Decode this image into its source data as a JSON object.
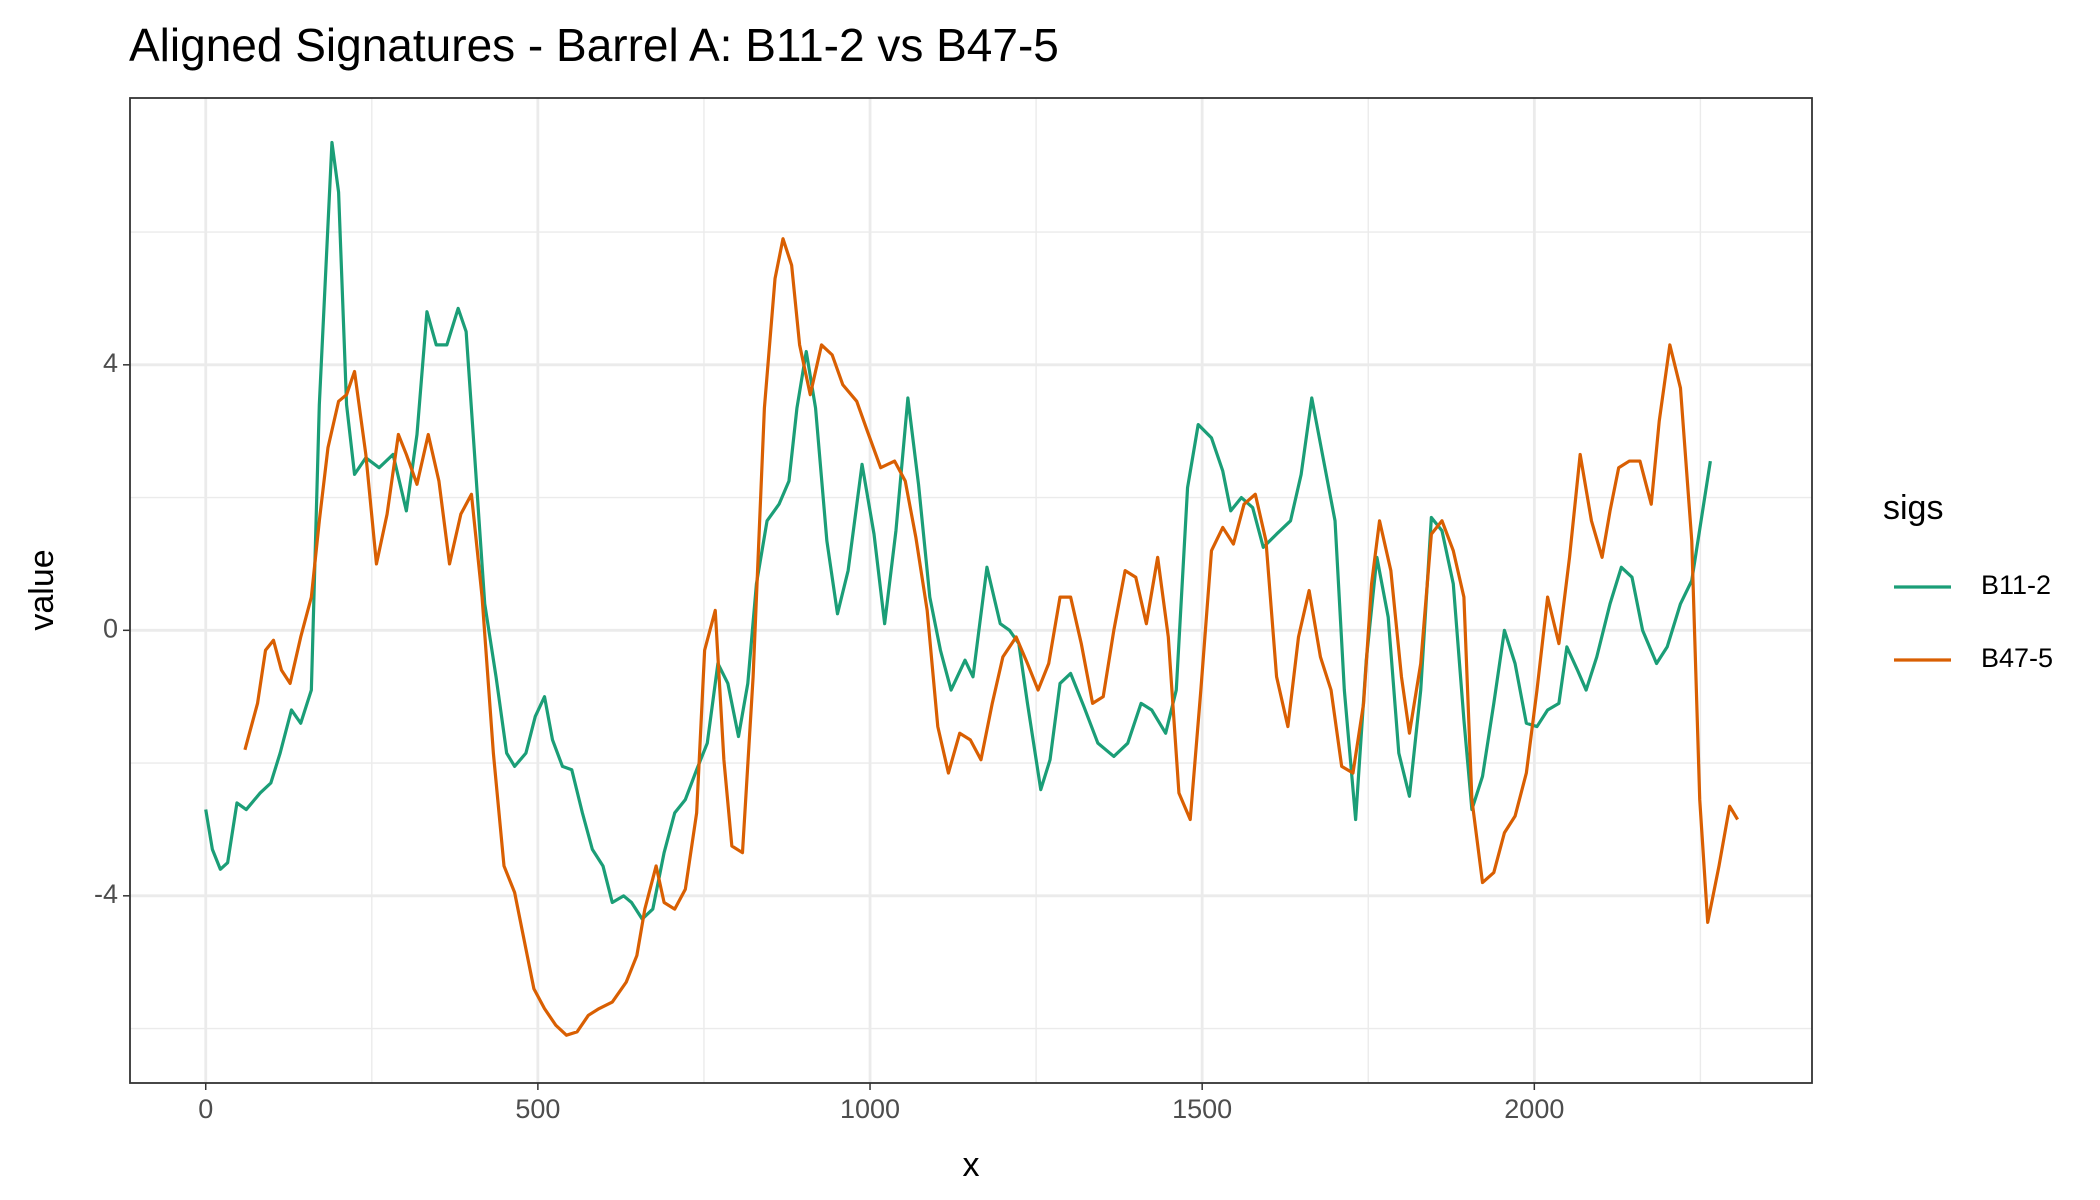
{
  "chart_data": {
    "type": "line",
    "title": "Aligned Signatures - Barrel A: B11-2 vs B47-5",
    "x_label": "x",
    "y_label": "value",
    "legend_title": "sigs",
    "legend": "right",
    "grid": true,
    "xlim": [
      -114,
      2418
    ],
    "ylim": [
      -6.82,
      8.02
    ],
    "xticks": [
      0,
      500,
      1000,
      1500,
      2000
    ],
    "yticks": [
      -4,
      0,
      4
    ],
    "series": [
      {
        "name": "B11-2",
        "color": "#1b9e77",
        "x": [
          0,
          10,
          22,
          33,
          47,
          61,
          82,
          98,
          112,
          129,
          143,
          159,
          171,
          190,
          200,
          212,
          224,
          241,
          261,
          282,
          302,
          318,
          333,
          347,
          363,
          380,
          392,
          404,
          420,
          437,
          453,
          465,
          482,
          496,
          510,
          522,
          537,
          551,
          567,
          582,
          598,
          612,
          629,
          641,
          657,
          673,
          690,
          706,
          722,
          739,
          755,
          771,
          786,
          802,
          816,
          829,
          845,
          863,
          878,
          890,
          904,
          918,
          935,
          951,
          967,
          988,
          1006,
          1022,
          1039,
          1057,
          1073,
          1090,
          1106,
          1122,
          1143,
          1155,
          1176,
          1196,
          1210,
          1224,
          1237,
          1257,
          1271,
          1286,
          1302,
          1322,
          1343,
          1367,
          1388,
          1408,
          1424,
          1445,
          1461,
          1478,
          1494,
          1514,
          1531,
          1543,
          1559,
          1576,
          1592,
          1612,
          1633,
          1649,
          1665,
          1682,
          1700,
          1714,
          1731,
          1747,
          1763,
          1780,
          1796,
          1812,
          1829,
          1845,
          1861,
          1878,
          1894,
          1906,
          1922,
          1939,
          1955,
          1971,
          1988,
          2004,
          2020,
          2037,
          2049,
          2065,
          2078,
          2094,
          2114,
          2131,
          2147,
          2163,
          2184,
          2200,
          2220,
          2237,
          2265
        ],
        "values": [
          -2.7,
          -3.3,
          -3.6,
          -3.5,
          -2.6,
          -2.7,
          -2.45,
          -2.3,
          -1.85,
          -1.2,
          -1.4,
          -0.9,
          3.4,
          7.35,
          6.6,
          3.4,
          2.35,
          2.6,
          2.45,
          2.65,
          1.8,
          2.95,
          4.8,
          4.3,
          4.3,
          4.85,
          4.5,
          2.75,
          0.4,
          -0.7,
          -1.85,
          -2.05,
          -1.85,
          -1.3,
          -1.0,
          -1.65,
          -2.05,
          -2.1,
          -2.75,
          -3.3,
          -3.55,
          -4.1,
          -4.0,
          -4.1,
          -4.35,
          -4.2,
          -3.35,
          -2.75,
          -2.55,
          -2.1,
          -1.7,
          -0.5,
          -0.8,
          -1.6,
          -0.8,
          0.7,
          1.65,
          1.9,
          2.25,
          3.35,
          4.2,
          3.35,
          1.35,
          0.25,
          0.9,
          2.5,
          1.45,
          0.1,
          1.5,
          3.5,
          2.2,
          0.5,
          -0.3,
          -0.9,
          -0.45,
          -0.7,
          0.95,
          0.1,
          0,
          -0.2,
          -1.1,
          -2.4,
          -1.95,
          -0.8,
          -0.65,
          -1.15,
          -1.7,
          -1.9,
          -1.7,
          -1.1,
          -1.2,
          -1.55,
          -0.9,
          2.15,
          3.1,
          2.9,
          2.4,
          1.8,
          2.0,
          1.85,
          1.25,
          1.45,
          1.65,
          2.35,
          3.5,
          2.6,
          1.65,
          -0.9,
          -2.85,
          -0.45,
          1.1,
          0.2,
          -1.85,
          -2.5,
          -0.9,
          1.7,
          1.5,
          0.7,
          -1.35,
          -2.7,
          -2.2,
          -1.1,
          0,
          -0.5,
          -1.4,
          -1.45,
          -1.2,
          -1.1,
          -0.25,
          -0.6,
          -0.9,
          -0.4,
          0.4,
          0.95,
          0.8,
          0,
          -0.5,
          -0.25,
          0.4,
          0.75,
          2.55
        ]
      },
      {
        "name": "B47-5",
        "color": "#d95f02",
        "x": [
          59,
          78,
          90,
          102,
          114,
          127,
          143,
          159,
          171,
          184,
          200,
          212,
          224,
          241,
          257,
          273,
          290,
          302,
          318,
          335,
          351,
          367,
          384,
          400,
          416,
          433,
          449,
          465,
          478,
          494,
          510,
          527,
          543,
          559,
          576,
          592,
          612,
          633,
          649,
          661,
          678,
          690,
          706,
          722,
          739,
          751,
          767,
          780,
          792,
          808,
          824,
          841,
          857,
          869,
          882,
          894,
          910,
          927,
          943,
          959,
          980,
          996,
          1016,
          1037,
          1053,
          1069,
          1086,
          1102,
          1118,
          1135,
          1151,
          1167,
          1184,
          1200,
          1220,
          1237,
          1253,
          1269,
          1286,
          1302,
          1318,
          1335,
          1351,
          1367,
          1384,
          1400,
          1416,
          1433,
          1449,
          1465,
          1482,
          1498,
          1514,
          1531,
          1547,
          1563,
          1580,
          1596,
          1612,
          1629,
          1645,
          1661,
          1678,
          1694,
          1710,
          1727,
          1743,
          1755,
          1767,
          1784,
          1800,
          1812,
          1829,
          1845,
          1861,
          1878,
          1894,
          1906,
          1922,
          1939,
          1955,
          1971,
          1988,
          2004,
          2020,
          2037,
          2053,
          2069,
          2086,
          2102,
          2114,
          2127,
          2143,
          2159,
          2176,
          2188,
          2204,
          2220,
          2237,
          2249,
          2261,
          2278,
          2294,
          2306
        ],
        "values": [
          -1.8,
          -1.1,
          -0.3,
          -0.15,
          -0.6,
          -0.8,
          -0.1,
          0.5,
          1.65,
          2.75,
          3.45,
          3.55,
          3.9,
          2.65,
          1.0,
          1.75,
          2.95,
          2.65,
          2.2,
          2.95,
          2.25,
          1.0,
          1.75,
          2.05,
          0.5,
          -1.85,
          -3.55,
          -3.95,
          -4.6,
          -5.4,
          -5.7,
          -5.95,
          -6.1,
          -6.05,
          -5.8,
          -5.7,
          -5.6,
          -5.3,
          -4.9,
          -4.2,
          -3.55,
          -4.1,
          -4.2,
          -3.9,
          -2.75,
          -0.3,
          0.3,
          -1.95,
          -3.25,
          -3.35,
          -0.7,
          3.35,
          5.3,
          5.9,
          5.5,
          4.3,
          3.55,
          4.3,
          4.15,
          3.7,
          3.45,
          3.0,
          2.45,
          2.55,
          2.25,
          1.4,
          0.3,
          -1.45,
          -2.15,
          -1.55,
          -1.65,
          -1.95,
          -1.1,
          -0.4,
          -0.1,
          -0.5,
          -0.9,
          -0.5,
          0.5,
          0.5,
          -0.2,
          -1.1,
          -1.0,
          0,
          0.9,
          0.8,
          0.1,
          1.1,
          -0.1,
          -2.45,
          -2.85,
          -0.9,
          1.2,
          1.55,
          1.3,
          1.9,
          2.05,
          1.35,
          -0.7,
          -1.45,
          -0.1,
          0.6,
          -0.4,
          -0.9,
          -2.05,
          -2.15,
          -1.1,
          0.7,
          1.65,
          0.9,
          -0.7,
          -1.55,
          -0.5,
          1.45,
          1.65,
          1.2,
          0.5,
          -2.55,
          -3.8,
          -3.65,
          -3.05,
          -2.8,
          -2.15,
          -0.9,
          0.5,
          -0.2,
          1.1,
          2.65,
          1.65,
          1.1,
          1.8,
          2.45,
          2.55,
          2.55,
          1.9,
          3.15,
          4.3,
          3.65,
          1.35,
          -2.55,
          -4.4,
          -3.55,
          -2.65,
          -2.85
        ]
      }
    ]
  }
}
